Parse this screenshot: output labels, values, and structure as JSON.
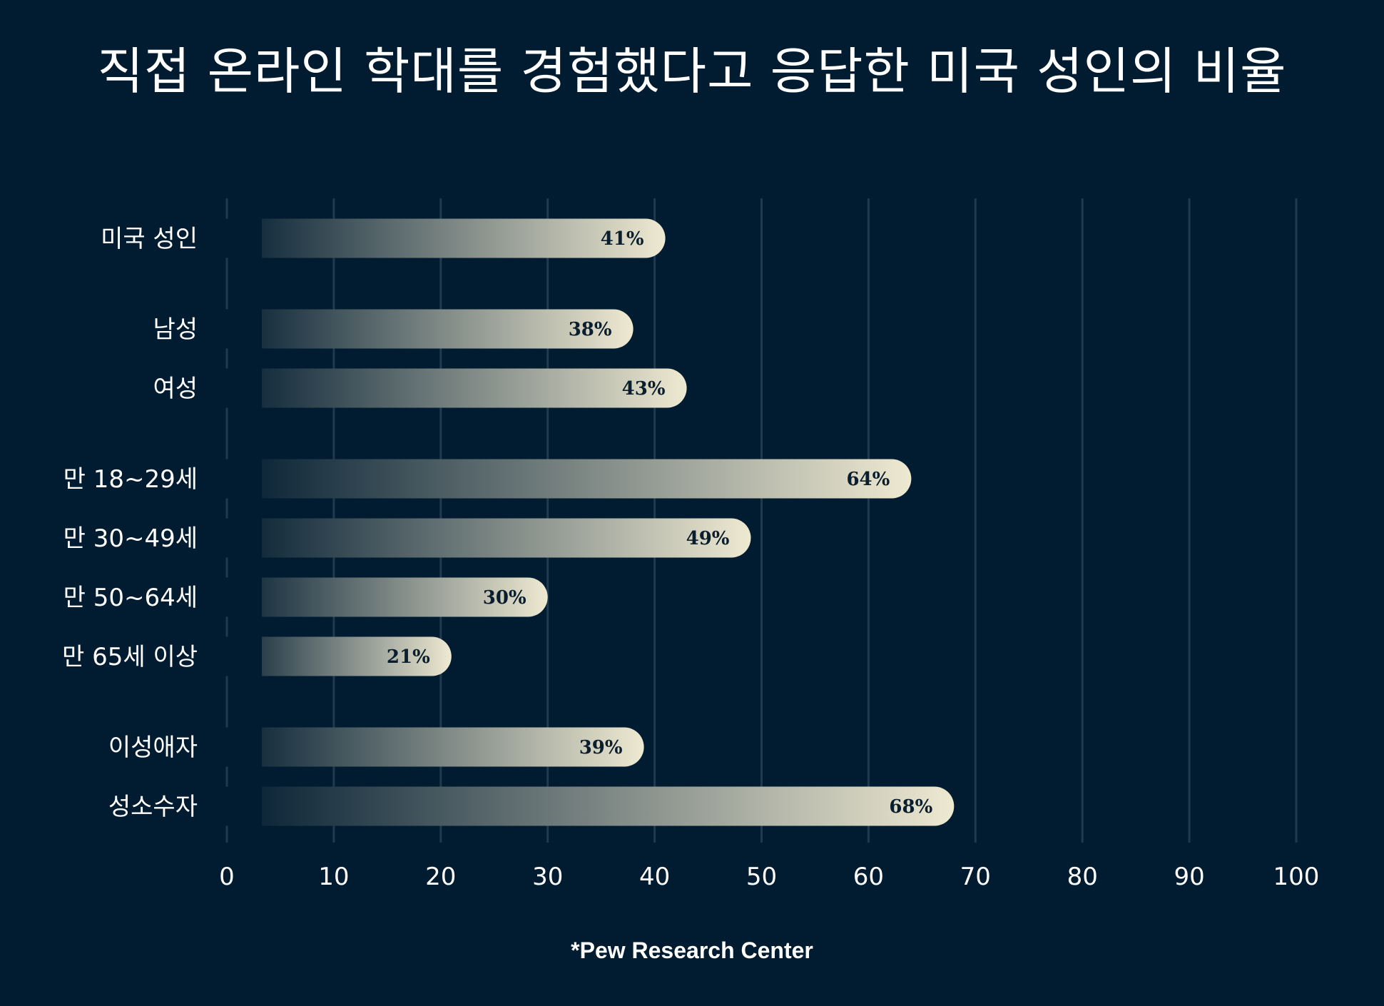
{
  "chart_data": {
    "type": "bar",
    "orientation": "horizontal",
    "title": "직접 온라인 학대를 경험했다고 응답한 미국 성인의 비율",
    "categories": [
      "미국 성인",
      "남성",
      "여성",
      "만 18~29세",
      "만 30~49세",
      "만 50~64세",
      "만 65세 이상",
      "이성애자",
      "성소수자"
    ],
    "groups": [
      [
        0
      ],
      [
        1,
        2
      ],
      [
        3,
        4,
        5,
        6
      ],
      [
        7,
        8
      ]
    ],
    "values": [
      41,
      38,
      43,
      64,
      49,
      30,
      21,
      39,
      68
    ],
    "value_labels": [
      "41%",
      "38%",
      "43%",
      "64%",
      "49%",
      "30%",
      "21%",
      "39%",
      "68%"
    ],
    "xlim": [
      0,
      100
    ],
    "xticks": [
      "0",
      "10",
      "20",
      "30",
      "40",
      "50",
      "60",
      "70",
      "80",
      "90",
      "100"
    ],
    "grid": true,
    "colors": {
      "background": "#011c30",
      "bar_start": "#011c30",
      "bar_end": "#eee9d1",
      "grid": "#1f3a4f",
      "value_text": "#0a1e2e"
    }
  },
  "source": "*Pew Research Center"
}
